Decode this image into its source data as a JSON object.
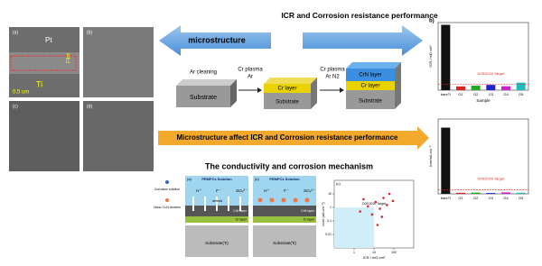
{
  "arrows": {
    "left": "microstructure",
    "right": "ICR and Corrosion resistance performance"
  },
  "micrographs": {
    "labels": [
      "(a)",
      "(b)",
      "(c)",
      "(d)"
    ],
    "annotations": [
      "Pt",
      "Film",
      "Ti",
      "0.5 um"
    ]
  },
  "process": {
    "steps": [
      {
        "label": "Ar cleaning"
      },
      {
        "label": "Cr plasma",
        "gas": "Ar"
      },
      {
        "label": "Cr plasma",
        "gas": "Ar N2"
      }
    ],
    "substrate": "Substrate",
    "cr_layer": "Cr layer",
    "crn_layer": "CrN layer"
  },
  "banner": "Microstructure affect ICR and Corrosion resistance performance",
  "mechanism": {
    "title": "The conductivity and corrosion mechanism",
    "legend": [
      "Corrosion solution",
      "Nano CrₓN clusters"
    ],
    "panels": [
      {
        "label": "(a)",
        "solution": "PEMFCs Solution",
        "ions": [
          "H⁺",
          "F⁻",
          "SO₄²⁻"
        ],
        "note": "defects",
        "layers": [
          "CrN layer",
          "Cr layer"
        ],
        "substrate": "Substrate(Ti)"
      },
      {
        "label": "(b)",
        "solution": "PEMFCs Solution",
        "ions": [
          "H⁺",
          "F⁻",
          "SO₄²⁻"
        ],
        "layers": [
          "CrN layer",
          "Cr layer"
        ],
        "substrate": "Substrate(Ti)"
      }
    ]
  },
  "scatter": {
    "label": "(c)",
    "x_label": "ICR / mΩ·cm²",
    "y_label": "Icorr (uA cm⁻²)",
    "target_label": "DOE2020 Target",
    "xlim": [
      0.1,
      1000
    ],
    "ylim": [
      0.001,
      100
    ],
    "xticks": [
      1,
      10,
      100
    ],
    "yticks": [
      0.01,
      0.1,
      1,
      10
    ],
    "x": [
      2,
      5,
      8,
      12,
      20,
      30,
      45,
      60,
      90,
      15,
      25,
      3
    ],
    "y": [
      0.5,
      1.2,
      0.3,
      2.5,
      0.8,
      5,
      1.5,
      10,
      3,
      0.05,
      0.2,
      4
    ],
    "color": "#d23"
  },
  "icr_chart": {
    "panel": "b)",
    "y_label": "ICR / mΩ cm²",
    "x_label": "Sample",
    "target_label": "DOE2020 Target",
    "target": 10,
    "categories": [
      "bareTi",
      "G1",
      "G2",
      "G3",
      "G4",
      "G5"
    ],
    "values": [
      115.93,
      6.74,
      8.02,
      9.34,
      6.96,
      13.36
    ],
    "colors": [
      "#111",
      "#d22",
      "#2a2",
      "#22c",
      "#c2c",
      "#2bb"
    ],
    "ylim": [
      0,
      120
    ]
  },
  "corrosion_chart": {
    "y_label": "Icorr/uA cm⁻²",
    "target_label": "DOE2020 Target",
    "target": 1,
    "categories": [
      "bareTi",
      "G1",
      "G2",
      "G3",
      "G4",
      "G5"
    ],
    "values": [
      15.93,
      0.25,
      0.3,
      0.2,
      0.35,
      0.28
    ],
    "colors": [
      "#111",
      "#d22",
      "#2a2",
      "#22c",
      "#c2c",
      "#2bb"
    ],
    "ylim": [
      0,
      18
    ]
  }
}
